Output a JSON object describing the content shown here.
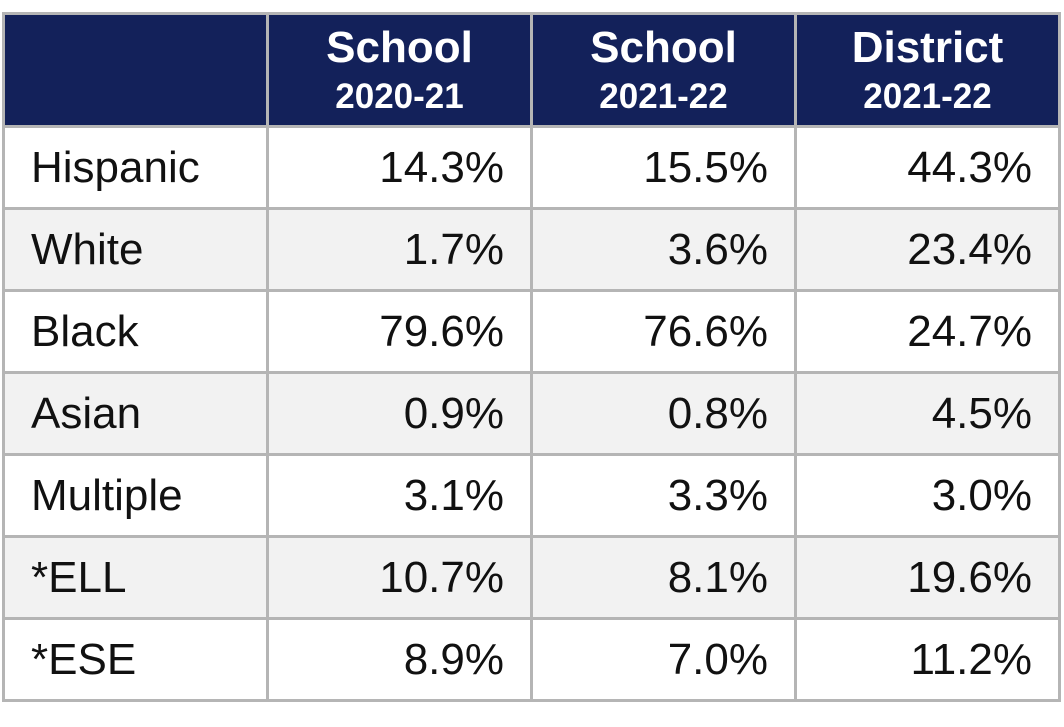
{
  "table": {
    "header": [
      {
        "title": "School",
        "year": "2020-21"
      },
      {
        "title": "School",
        "year": "2021-22"
      },
      {
        "title": "District",
        "year": "2021-22"
      }
    ],
    "rows": [
      [
        "Hispanic",
        "14.3%",
        "15.5%",
        "44.3%"
      ],
      [
        "White",
        "1.7%",
        "3.6%",
        "23.4%"
      ],
      [
        "Black",
        "79.6%",
        "76.6%",
        "24.7%"
      ],
      [
        "Asian",
        "0.9%",
        "0.8%",
        "4.5%"
      ],
      [
        "Multiple",
        "3.1%",
        "3.3%",
        "3.0%"
      ],
      [
        "*ELL",
        "10.7%",
        "8.1%",
        "19.6%"
      ],
      [
        "*ESE",
        "8.9%",
        "7.0%",
        "11.2%"
      ]
    ]
  }
}
